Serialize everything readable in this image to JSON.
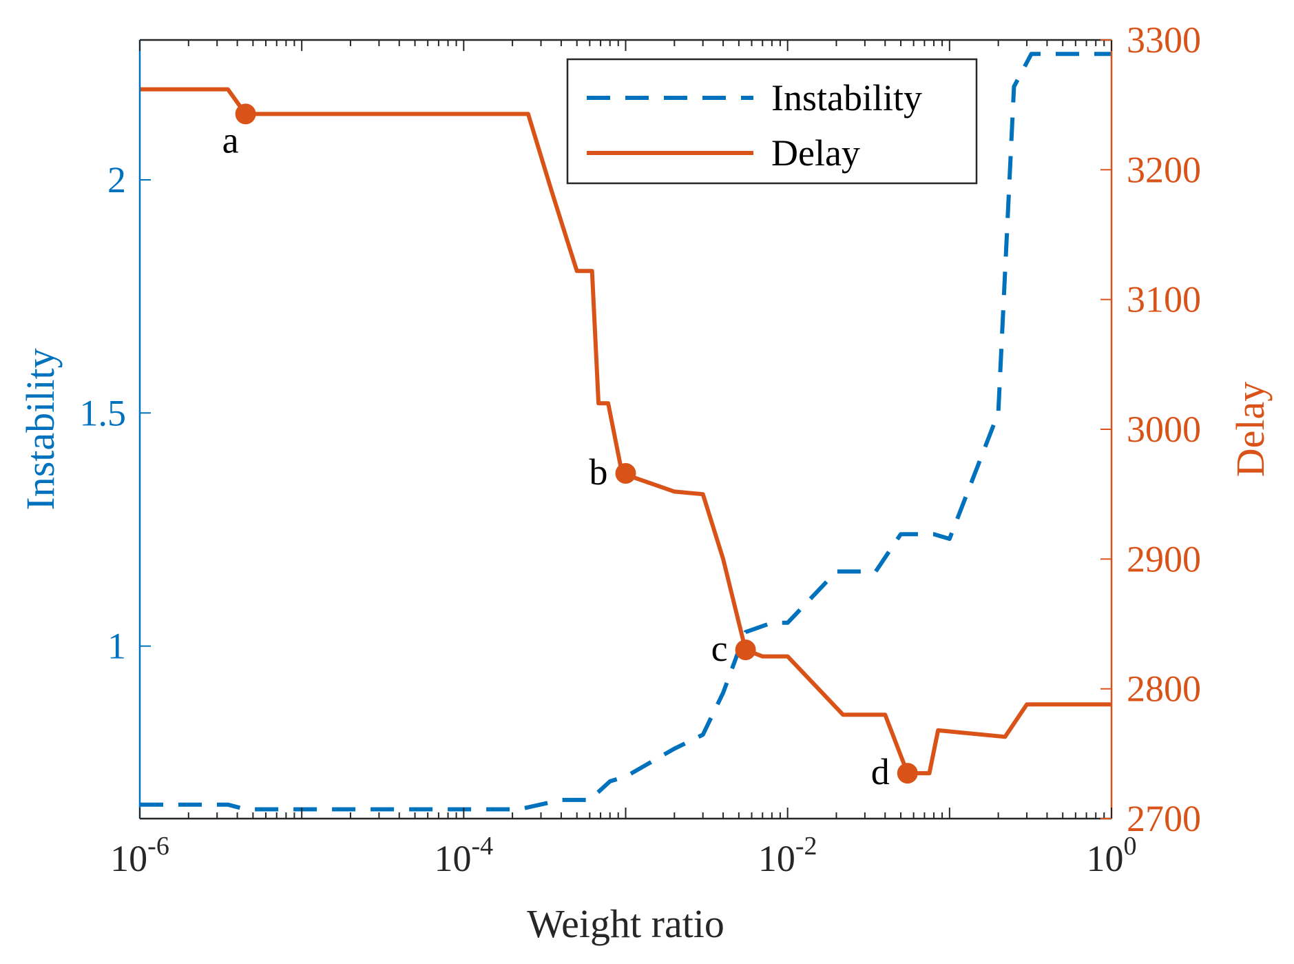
{
  "chart_data": {
    "type": "line",
    "xlabel": "Weight ratio",
    "xscale": "log",
    "xlim": [
      1e-06,
      1
    ],
    "x_ticks": [
      {
        "value": 1e-06,
        "base": "10",
        "exp": "-6"
      },
      {
        "value": 0.0001,
        "base": "10",
        "exp": "-4"
      },
      {
        "value": 0.01,
        "base": "10",
        "exp": "-2"
      },
      {
        "value": 1,
        "base": "10",
        "exp": "0"
      }
    ],
    "left_axis": {
      "label": "Instability",
      "ylim": [
        0.63,
        2.3
      ],
      "ticks": [
        {
          "value": 1,
          "label": "1"
        },
        {
          "value": 1.5,
          "label": "1.5"
        },
        {
          "value": 2,
          "label": "2"
        }
      ],
      "color": "#0072BD"
    },
    "right_axis": {
      "label": "Delay",
      "ylim": [
        2700,
        3300
      ],
      "ticks": [
        {
          "value": 2700,
          "label": "2700"
        },
        {
          "value": 2800,
          "label": "2800"
        },
        {
          "value": 2900,
          "label": "2900"
        },
        {
          "value": 3000,
          "label": "3000"
        },
        {
          "value": 3100,
          "label": "3100"
        },
        {
          "value": 3200,
          "label": "3200"
        },
        {
          "value": 3300,
          "label": "3300"
        }
      ],
      "color": "#D95319"
    },
    "legend": {
      "position": "top-right",
      "entries": [
        {
          "name": "Instability",
          "style": "dashed",
          "color": "#0072BD"
        },
        {
          "name": "Delay",
          "style": "solid",
          "color": "#D95319"
        }
      ]
    },
    "series": [
      {
        "name": "Instability",
        "axis": "left",
        "color": "#0072BD",
        "style": "dashed",
        "points": [
          [
            1e-06,
            0.66
          ],
          [
            3.5e-06,
            0.66
          ],
          [
            4.5e-06,
            0.65
          ],
          [
            1e-05,
            0.65
          ],
          [
            0.00022,
            0.65
          ],
          [
            0.0004,
            0.67
          ],
          [
            0.0006,
            0.67
          ],
          [
            0.0008,
            0.71
          ],
          [
            0.001,
            0.72
          ],
          [
            0.002,
            0.78
          ],
          [
            0.003,
            0.81
          ],
          [
            0.004,
            0.9
          ],
          [
            0.0055,
            1.03
          ],
          [
            0.008,
            1.05
          ],
          [
            0.01,
            1.05
          ],
          [
            0.02,
            1.16
          ],
          [
            0.035,
            1.16
          ],
          [
            0.05,
            1.24
          ],
          [
            0.08,
            1.24
          ],
          [
            0.1,
            1.23
          ],
          [
            0.2,
            1.5
          ],
          [
            0.25,
            2.2
          ],
          [
            0.32,
            2.27
          ],
          [
            1,
            2.27
          ]
        ]
      },
      {
        "name": "Delay",
        "axis": "right",
        "color": "#D95319",
        "style": "solid",
        "points": [
          [
            1e-06,
            3262
          ],
          [
            3.5e-06,
            3262
          ],
          [
            4.5e-06,
            3243
          ],
          [
            0.00025,
            3243
          ],
          [
            0.00035,
            3183
          ],
          [
            0.00045,
            3140
          ],
          [
            0.0005,
            3122
          ],
          [
            0.00062,
            3122
          ],
          [
            0.00068,
            3020
          ],
          [
            0.00078,
            3020
          ],
          [
            0.00095,
            2966
          ],
          [
            0.002,
            2952
          ],
          [
            0.003,
            2950
          ],
          [
            0.004,
            2900
          ],
          [
            0.0055,
            2830
          ],
          [
            0.007,
            2825
          ],
          [
            0.01,
            2825
          ],
          [
            0.022,
            2780
          ],
          [
            0.04,
            2780
          ],
          [
            0.055,
            2735
          ],
          [
            0.075,
            2735
          ],
          [
            0.085,
            2768
          ],
          [
            0.22,
            2763
          ],
          [
            0.3,
            2788
          ],
          [
            1,
            2788
          ]
        ]
      }
    ],
    "annotated_points": [
      {
        "label": "a",
        "x": 4.5e-06,
        "y": 3243,
        "axis": "right",
        "anchor": "below-left"
      },
      {
        "label": "b",
        "x": 0.001,
        "y": 2966,
        "axis": "right",
        "anchor": "left"
      },
      {
        "label": "c",
        "x": 0.0055,
        "y": 2830,
        "axis": "right",
        "anchor": "left"
      },
      {
        "label": "d",
        "x": 0.055,
        "y": 2735,
        "axis": "right",
        "anchor": "left"
      }
    ]
  }
}
